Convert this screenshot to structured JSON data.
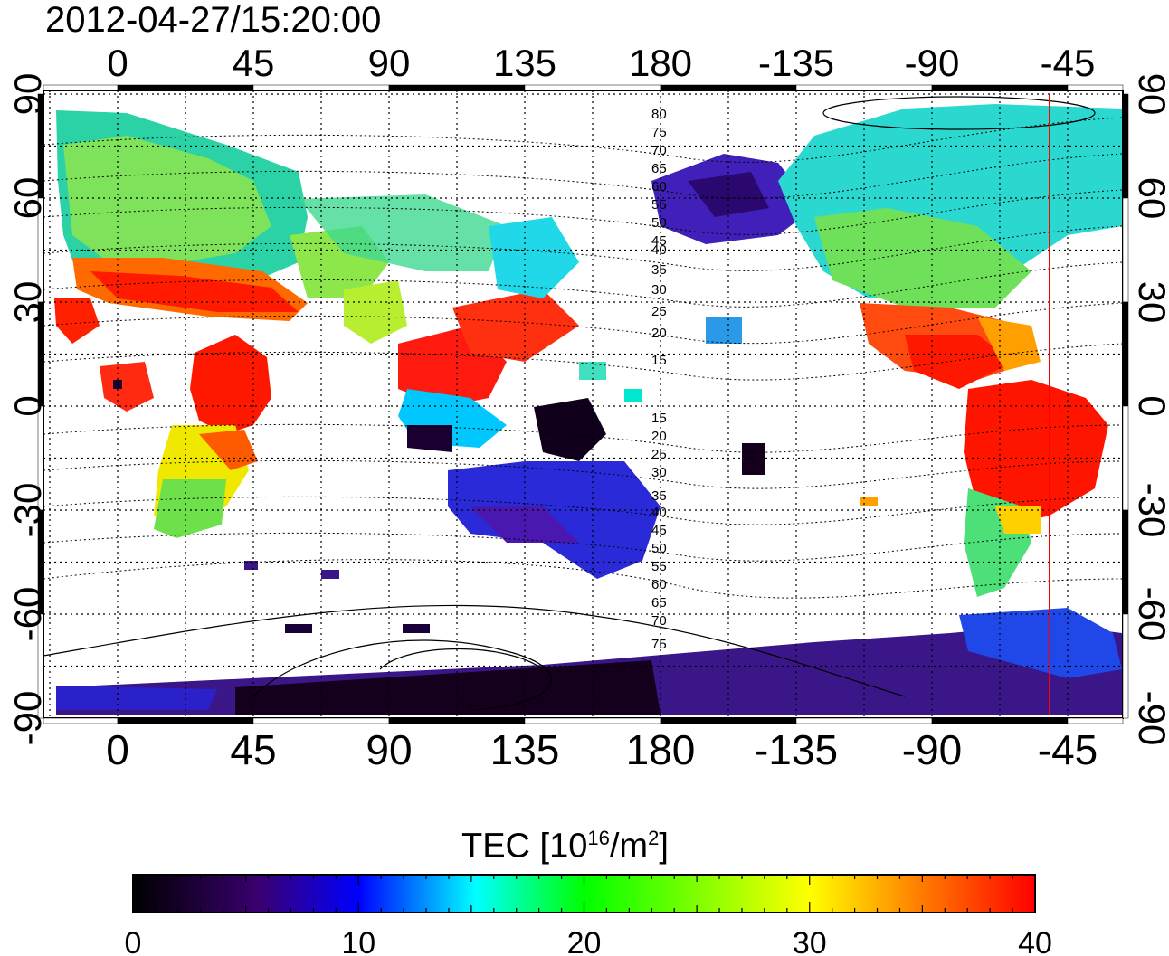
{
  "title": "2012-04-27/15:20:00",
  "axes": {
    "lon_ticks": [
      "0",
      "45",
      "90",
      "135",
      "180",
      "-135",
      "-90",
      "-45"
    ],
    "lat_ticks": [
      "90",
      "60",
      "30",
      "0",
      "-30",
      "-60",
      "-90"
    ]
  },
  "contour_labels_north": [
    "80",
    "75",
    "70",
    "65",
    "60",
    "55",
    "50",
    "45",
    "40",
    "35",
    "30",
    "25",
    "20",
    "15"
  ],
  "contour_labels_south": [
    "15",
    "20",
    "25",
    "30",
    "35",
    "40",
    "45",
    "50",
    "55",
    "60",
    "65",
    "70",
    "75"
  ],
  "colorbar": {
    "title_prefix": "TEC  [10",
    "title_exp1": "16",
    "title_mid": "/m",
    "title_exp2": "2",
    "title_suffix": "]",
    "range": [
      0,
      40
    ],
    "tick_labels": [
      "0",
      "10",
      "20",
      "30",
      "40"
    ],
    "colors": [
      "#000000",
      "#3a0070",
      "#0000ff",
      "#00ffff",
      "#00ff00",
      "#ffff00",
      "#ff8000",
      "#ff0000"
    ]
  },
  "marker_line": {
    "longitude": -49,
    "color": "#ff0000"
  },
  "legend_unit": "TEC"
}
